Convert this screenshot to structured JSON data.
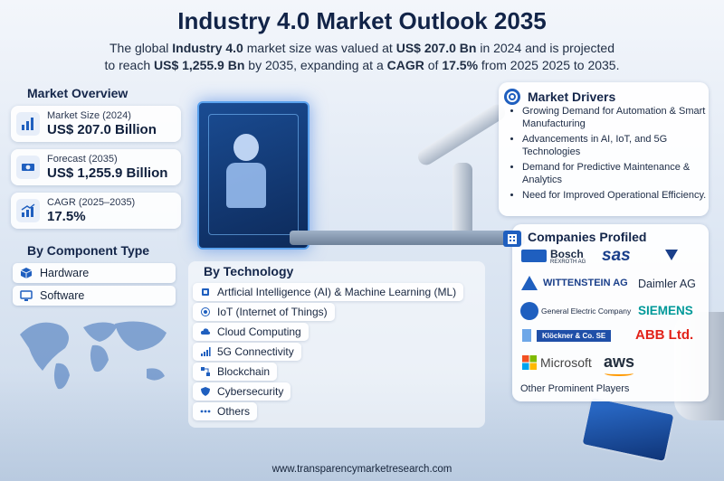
{
  "header": {
    "title": "Industry 4.0 Market Outlook 2035",
    "subtitle_parts": {
      "p1": "The global ",
      "b1": "Industry 4.0",
      "p2": " market size was valued at ",
      "b2": "US$ 207.0 Bn",
      "p3": " in 2024 and is projected",
      "p4": "to reach ",
      "b3": "US$ 1,255.9 Bn",
      "p5": " by 2035, expanding at a ",
      "b4": "CAGR",
      "p6": " of ",
      "b5": "17.5%",
      "p7": " from 2025 2025 to 2035."
    }
  },
  "overview": {
    "title": "Market Overview",
    "cards": [
      {
        "label": "Market Size (2024)",
        "value": "US$ 207.0 Billion",
        "icon": "bar-chart-icon"
      },
      {
        "label": "Forecast (2035)",
        "value": "US$ 1,255.9 Billion",
        "icon": "money-icon"
      },
      {
        "label": "CAGR (2025–2035)",
        "value": "17.5%",
        "icon": "growth-chart-icon"
      }
    ]
  },
  "component": {
    "title": "By Component Type",
    "items": [
      {
        "label": "Hardware",
        "icon": "cube-icon"
      },
      {
        "label": "Software",
        "icon": "monitor-icon"
      }
    ]
  },
  "technology": {
    "title": "By Technology",
    "items": [
      {
        "label": "Artficial Intelligence (AI) & Machine Learning (ML)",
        "icon": "chip-icon"
      },
      {
        "label": "IoT (Internet of Things)",
        "icon": "iot-icon"
      },
      {
        "label": "Cloud Computing",
        "icon": "cloud-icon"
      },
      {
        "label": "5G Connectivity",
        "icon": "signal-icon"
      },
      {
        "label": "Blockchain",
        "icon": "blockchain-icon"
      },
      {
        "label": "Cybersecurity",
        "icon": "shield-icon"
      },
      {
        "label": "Others",
        "icon": "dots-icon"
      }
    ]
  },
  "drivers": {
    "title": "Market Drivers",
    "items": [
      "Growing Demand for Automation & Smart Manufacturing",
      "Advancements in AI, IoT, and 5G Technologies",
      "Demand for Predictive Maintenance & Analytics",
      "Need for Improved Operational Efficiency."
    ]
  },
  "companies": {
    "title": "Companies Profiled",
    "logos": {
      "bosch": "Bosch",
      "bosch_sub": "REXROTH AG",
      "sas": "sas",
      "wittenstein": "WITTENSTEIN AG",
      "daimler": "Daimler AG",
      "ge": "General Electric Company",
      "siemens": "SIEMENS",
      "klockner": "Klöckner & Co. SE",
      "abb": "ABB Ltd.",
      "microsoft": "Microsoft",
      "aws": "aws"
    },
    "other": "Other Prominent Players"
  },
  "footer": {
    "url": "www.transparencymarketresearch.com"
  },
  "colors": {
    "accent": "#1f5fbf",
    "title": "#122448",
    "abb_red": "#e2231a",
    "siemens_teal": "#009999"
  }
}
